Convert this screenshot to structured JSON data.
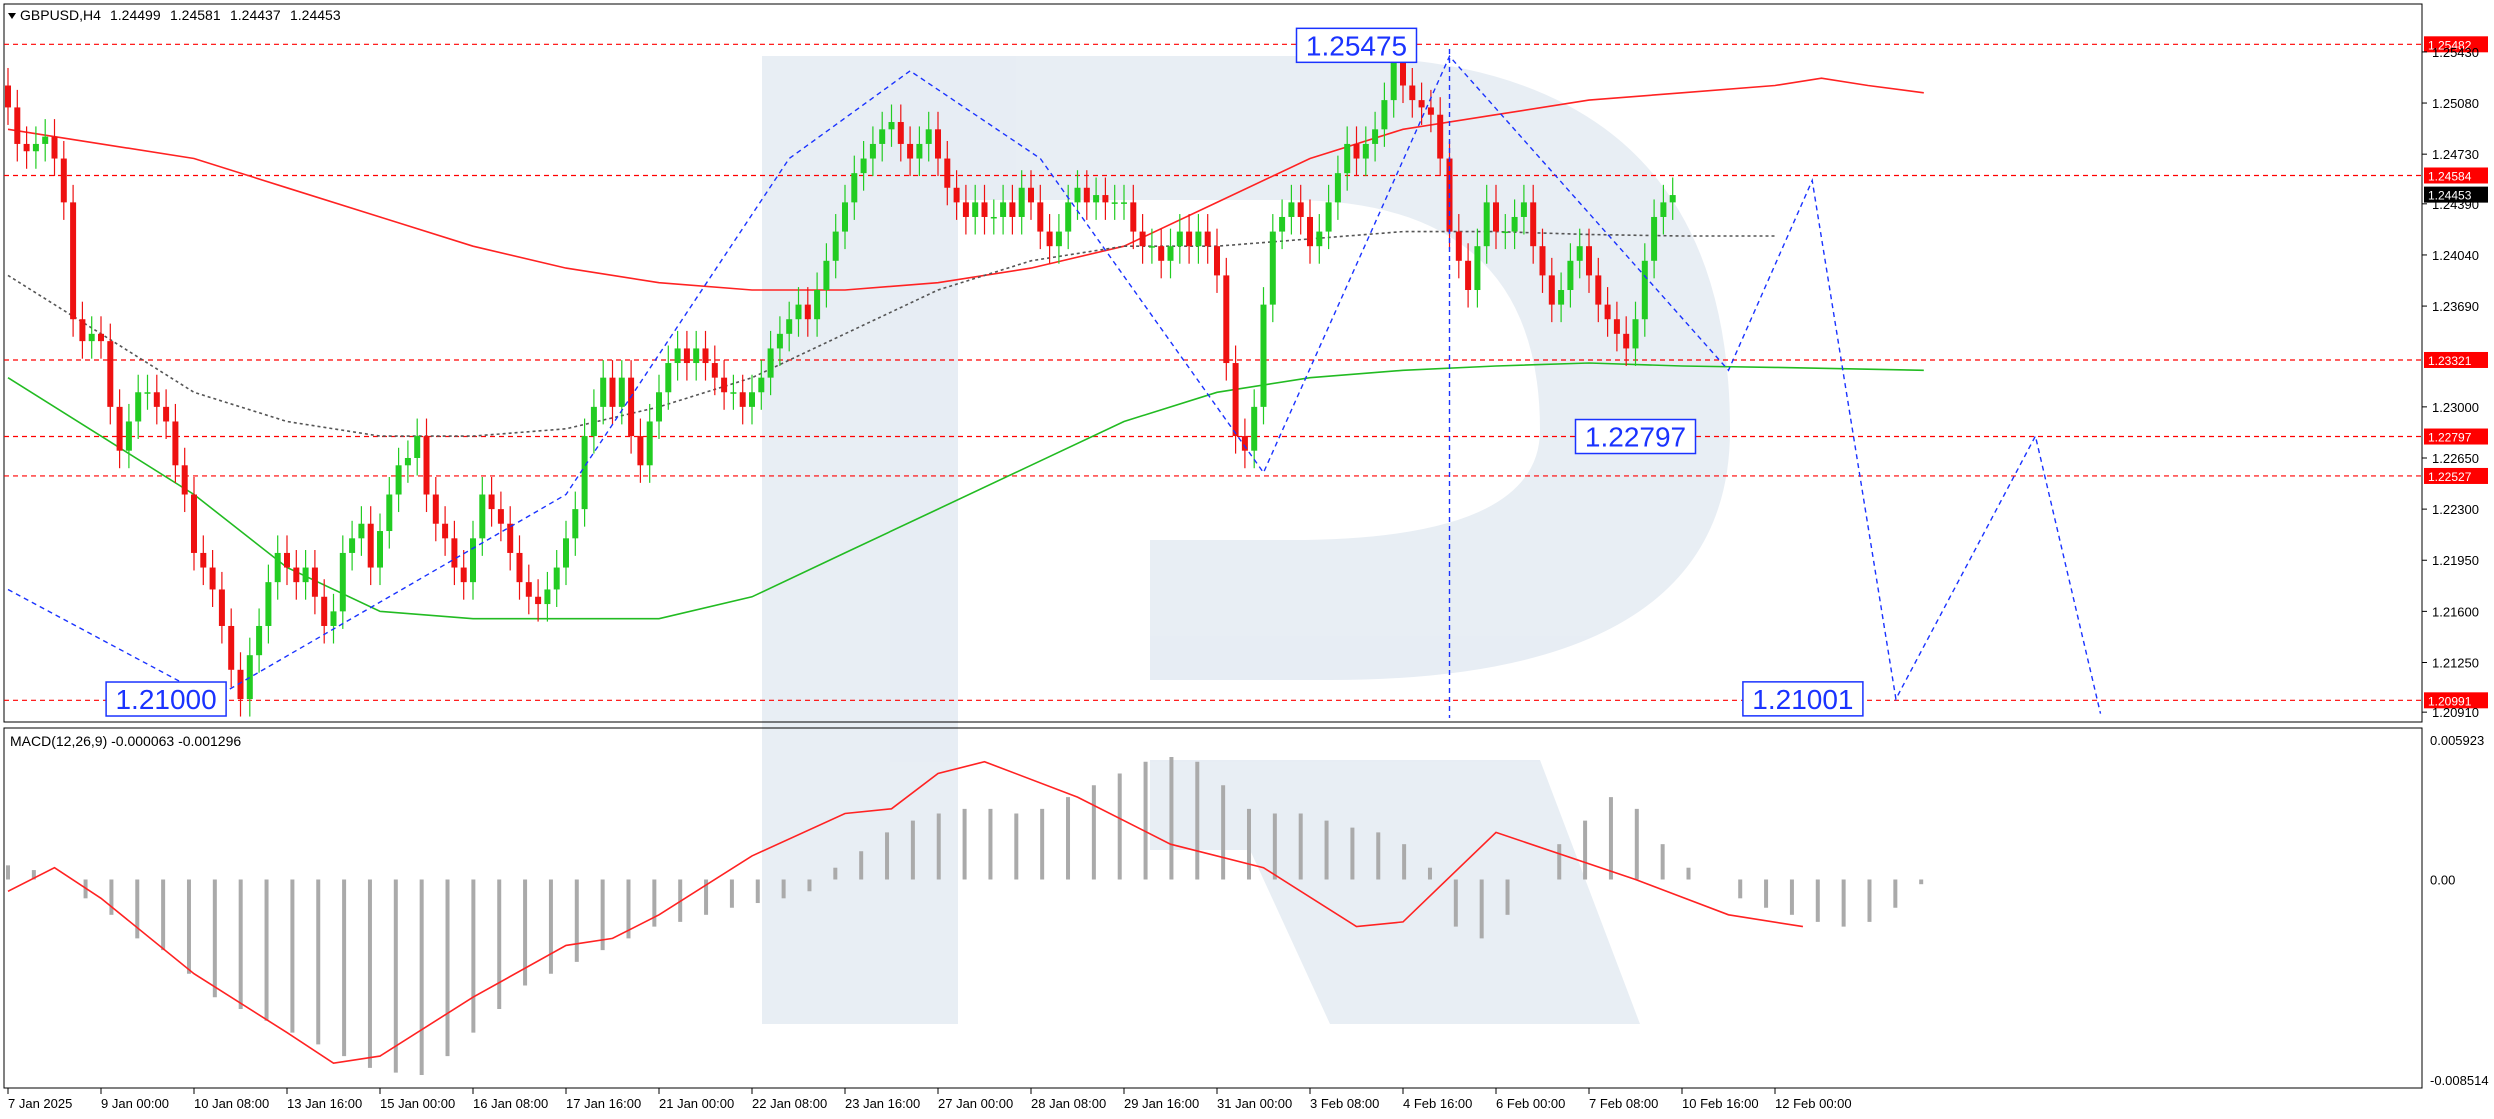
{
  "chart_data": {
    "type": "candlestick",
    "symbol_header": "GBPUSD,H4",
    "ohlc_header": [
      "1.24499",
      "1.24581",
      "1.24437",
      "1.24453"
    ],
    "main_ylim": [
      1.2087,
      1.2558
    ],
    "price_ticks": [
      "1.25430",
      "1.25080",
      "1.24730",
      "1.24390",
      "1.24040",
      "1.23690",
      "1.23000",
      "1.22650",
      "1.22300",
      "1.21950",
      "1.21600",
      "1.21250",
      "1.20910"
    ],
    "level_lines": [
      {
        "price": 1.25482,
        "label": "1.25482"
      },
      {
        "price": 1.24584,
        "label": "1.24584"
      },
      {
        "price": 1.23321,
        "label": "1.23321"
      },
      {
        "price": 1.22797,
        "label": "1.22797"
      },
      {
        "price": 1.22527,
        "label": "1.22527"
      },
      {
        "price": 1.20991,
        "label": "1.20991"
      }
    ],
    "current_price": "1.24453",
    "annotations": [
      {
        "text": "1.25475",
        "x": 145,
        "y": 1.25475
      },
      {
        "text": "1.22797",
        "x": 175,
        "y": 1.22797
      },
      {
        "text": "1.21001",
        "x": 193,
        "y": 1.21001
      },
      {
        "text": "1.21000",
        "x": 17,
        "y": 1.21
      }
    ],
    "x_ticks": [
      {
        "label": "7 Jan 2025",
        "x": 0
      },
      {
        "label": "9 Jan 00:00",
        "x": 10
      },
      {
        "label": "10 Jan 08:00",
        "x": 20
      },
      {
        "label": "13 Jan 16:00",
        "x": 30
      },
      {
        "label": "15 Jan 00:00",
        "x": 40
      },
      {
        "label": "16 Jan 08:00",
        "x": 50
      },
      {
        "label": "17 Jan 16:00",
        "x": 60
      },
      {
        "label": "21 Jan 00:00",
        "x": 70
      },
      {
        "label": "22 Jan 08:00",
        "x": 80
      },
      {
        "label": "23 Jan 16:00",
        "x": 90
      },
      {
        "label": "27 Jan 00:00",
        "x": 100
      },
      {
        "label": "28 Jan 08:00",
        "x": 110
      },
      {
        "label": "29 Jan 16:00",
        "x": 120
      },
      {
        "label": "31 Jan 00:00",
        "x": 130
      },
      {
        "label": "3 Feb 08:00",
        "x": 140
      },
      {
        "label": "4 Feb 16:00",
        "x": 150
      },
      {
        "label": "6 Feb 00:00",
        "x": 160
      },
      {
        "label": "7 Feb 08:00",
        "x": 170
      },
      {
        "label": "10 Feb 16:00",
        "x": 180
      },
      {
        "label": "12 Feb 00:00",
        "x": 190
      }
    ],
    "closes": [
      1.2505,
      1.248,
      1.2475,
      1.248,
      1.2485,
      1.247,
      1.244,
      1.236,
      1.2345,
      1.235,
      1.2345,
      1.23,
      1.227,
      1.229,
      1.231,
      1.231,
      1.23,
      1.229,
      1.226,
      1.224,
      1.22,
      1.219,
      1.2175,
      1.215,
      1.212,
      1.21,
      1.213,
      1.215,
      1.218,
      1.22,
      1.219,
      1.218,
      1.219,
      1.217,
      1.215,
      1.216,
      1.22,
      1.221,
      1.222,
      1.219,
      1.2215,
      1.224,
      1.226,
      1.2265,
      1.228,
      1.224,
      1.222,
      1.221,
      1.219,
      1.218,
      1.221,
      1.224,
      1.223,
      1.222,
      1.22,
      1.218,
      1.217,
      1.2165,
      1.2175,
      1.219,
      1.221,
      1.223,
      1.228,
      1.23,
      1.232,
      1.23,
      1.232,
      1.228,
      1.226,
      1.229,
      1.231,
      1.233,
      1.234,
      1.233,
      1.234,
      1.233,
      1.232,
      1.231,
      1.231,
      1.23,
      1.231,
      1.232,
      1.234,
      1.235,
      1.236,
      1.237,
      1.236,
      1.238,
      1.24,
      1.242,
      1.244,
      1.246,
      1.247,
      1.248,
      1.249,
      1.2495,
      1.248,
      1.247,
      1.248,
      1.249,
      1.247,
      1.245,
      1.244,
      1.243,
      1.244,
      1.243,
      1.243,
      1.244,
      1.243,
      1.245,
      1.244,
      1.242,
      1.241,
      1.242,
      1.244,
      1.245,
      1.244,
      1.2445,
      1.244,
      1.244,
      1.244,
      1.242,
      1.241,
      1.241,
      1.24,
      1.241,
      1.242,
      1.241,
      1.242,
      1.241,
      1.239,
      1.233,
      1.228,
      1.227,
      1.23,
      1.237,
      1.242,
      1.243,
      1.244,
      1.243,
      1.241,
      1.242,
      1.244,
      1.246,
      1.248,
      1.247,
      1.248,
      1.249,
      1.251,
      1.254,
      1.252,
      1.251,
      1.2505,
      1.25,
      1.247,
      1.242,
      1.24,
      1.238,
      1.241,
      1.244,
      1.242,
      1.242,
      1.243,
      1.244,
      1.241,
      1.239,
      1.237,
      1.238,
      1.24,
      1.241,
      1.239,
      1.237,
      1.236,
      1.235,
      1.234,
      1.236,
      1.24,
      1.243,
      1.244,
      1.2445
    ],
    "ma_red": [
      1.249,
      1.248,
      1.247,
      1.245,
      1.243,
      1.241,
      1.2395,
      1.2385,
      1.238,
      1.238,
      1.2385,
      1.2395,
      1.241,
      1.244,
      1.247,
      1.249,
      1.25,
      1.251,
      1.2515,
      1.252,
      1.2525,
      1.252,
      1.2515
    ],
    "ma_red_x": [
      0,
      10,
      20,
      30,
      40,
      50,
      60,
      70,
      80,
      90,
      100,
      110,
      120,
      130,
      140,
      150,
      160,
      170,
      180,
      190,
      195,
      200,
      206
    ],
    "ma_green": [
      1.232,
      1.228,
      1.224,
      1.219,
      1.216,
      1.2155,
      1.2155,
      1.2155,
      1.217,
      1.22,
      1.223,
      1.226,
      1.229,
      1.231,
      1.232,
      1.2325,
      1.2328,
      1.233,
      1.2328,
      1.2327,
      1.2325
    ],
    "ma_green_x": [
      0,
      10,
      20,
      30,
      40,
      50,
      60,
      70,
      80,
      90,
      100,
      110,
      120,
      130,
      140,
      150,
      160,
      170,
      180,
      190,
      206
    ],
    "ma_gray": [
      1.239,
      1.235,
      1.231,
      1.229,
      1.228,
      1.228,
      1.2285,
      1.23,
      1.232,
      1.235,
      1.238,
      1.24,
      1.241,
      1.241,
      1.2415,
      1.242,
      1.242,
      1.2418,
      1.2417,
      1.2417
    ],
    "ma_gray_x": [
      0,
      10,
      20,
      30,
      40,
      50,
      60,
      70,
      80,
      90,
      100,
      110,
      120,
      130,
      140,
      150,
      160,
      170,
      180,
      190
    ],
    "wave_path": [
      [
        0,
        1.2175
      ],
      [
        22,
        1.21
      ],
      [
        60,
        1.224
      ],
      [
        84,
        1.247
      ],
      [
        97,
        1.253
      ],
      [
        111,
        1.247
      ],
      [
        135,
        1.2255
      ],
      [
        155,
        1.254
      ],
      [
        185,
        1.2325
      ],
      [
        194,
        1.2455
      ],
      [
        203,
        1.21
      ],
      [
        218,
        1.228
      ],
      [
        225,
        1.209
      ]
    ],
    "macd": {
      "label": "MACD(12,26,9) -0.000063 -0.001296",
      "ylim": [
        -0.008514,
        0.005923
      ],
      "ticks": [
        "0.005923",
        "0.00",
        "-0.008514"
      ],
      "histogram": [
        0.0006,
        0.0004,
        0.0,
        -0.0008,
        -0.0015,
        -0.0025,
        -0.003,
        -0.004,
        -0.005,
        -0.0055,
        -0.006,
        -0.0065,
        -0.007,
        -0.0075,
        -0.008,
        -0.0082,
        -0.0083,
        -0.0075,
        -0.0065,
        -0.0055,
        -0.0045,
        -0.004,
        -0.0035,
        -0.003,
        -0.0025,
        -0.002,
        -0.0018,
        -0.0015,
        -0.0012,
        -0.001,
        -0.0008,
        -0.0005,
        0.0005,
        0.0012,
        0.002,
        0.0025,
        0.0028,
        0.003,
        0.003,
        0.0028,
        0.003,
        0.0035,
        0.004,
        0.0045,
        0.005,
        0.0052,
        0.005,
        0.004,
        0.003,
        0.0028,
        0.0028,
        0.0025,
        0.0022,
        0.002,
        0.0015,
        0.0005,
        -0.002,
        -0.0025,
        -0.0015,
        0.0,
        0.0015,
        0.0025,
        0.0035,
        0.003,
        0.0015,
        0.0005,
        0.0,
        -0.0008,
        -0.0012,
        -0.0015,
        -0.0018,
        -0.002,
        -0.0018,
        -0.0012,
        -0.0002
      ],
      "histogram_x0": 0,
      "histogram_dx": 2.78,
      "signal": [
        -0.0005,
        0.0005,
        -0.0008,
        -0.004,
        -0.0065,
        -0.0078,
        -0.0075,
        -0.005,
        -0.0028,
        -0.0025,
        -0.0015,
        0.001,
        0.0028,
        0.003,
        0.0045,
        0.005,
        0.0035,
        0.0015,
        0.0005,
        -0.002,
        -0.0018,
        0.002,
        0.0,
        -0.0015,
        -0.002
      ],
      "signal_x": [
        0,
        5,
        10,
        20,
        30,
        35,
        40,
        50,
        60,
        65,
        70,
        80,
        90,
        95,
        100,
        105,
        115,
        125,
        135,
        145,
        150,
        160,
        175,
        185,
        193
      ]
    }
  }
}
